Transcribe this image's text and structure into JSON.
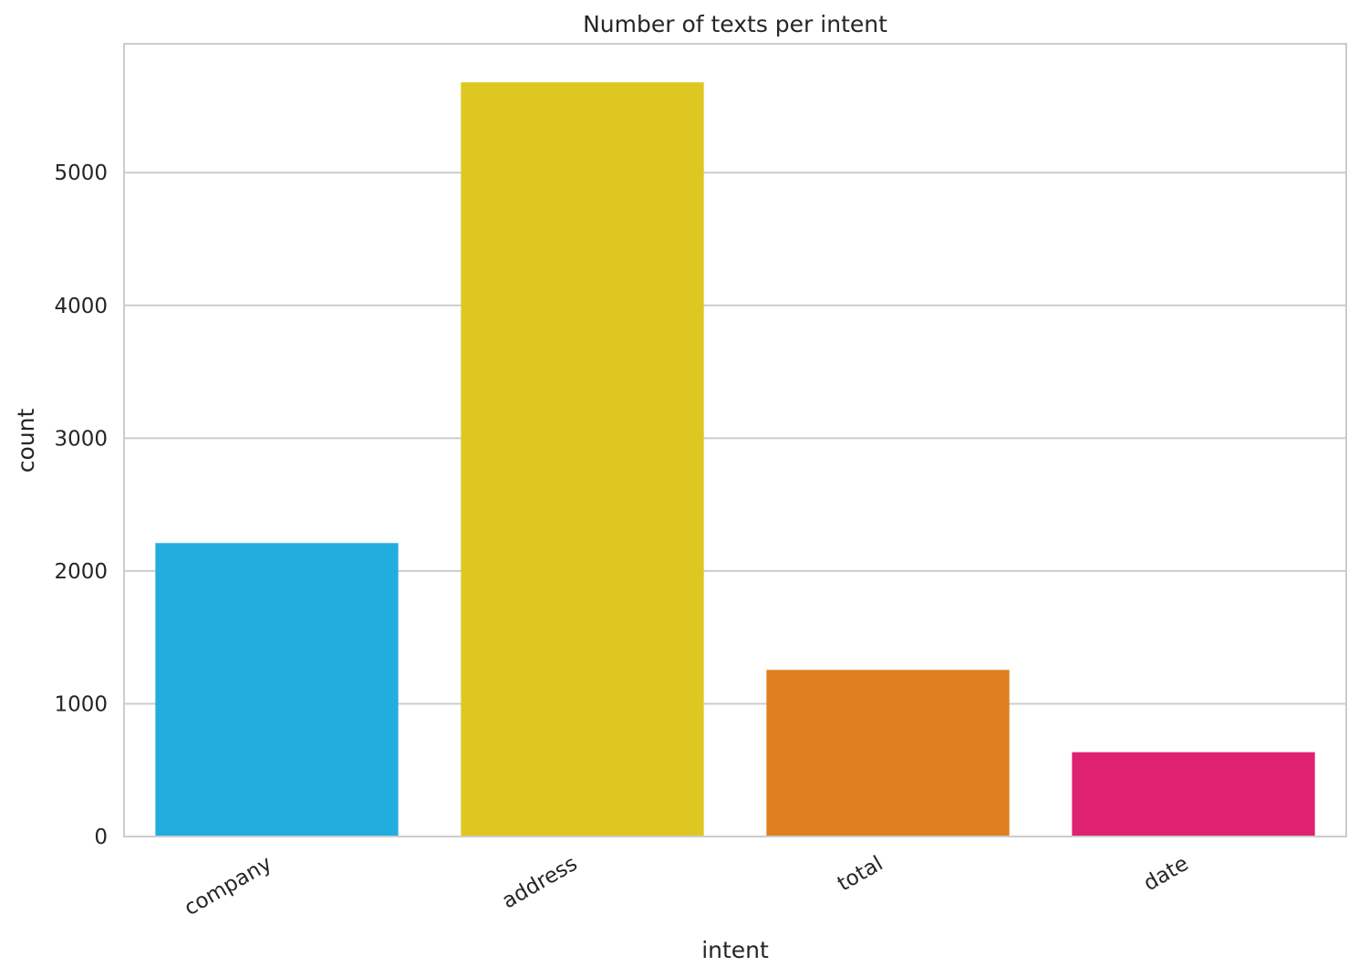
{
  "chart_data": {
    "type": "bar",
    "title": "Number of texts per intent",
    "xlabel": "intent",
    "ylabel": "count",
    "categories": [
      "company",
      "address",
      "total",
      "date"
    ],
    "values": [
      2210,
      5680,
      1255,
      635
    ],
    "colors": [
      "#22ADDF",
      "#DFC721",
      "#DF7F21",
      "#DF2172"
    ],
    "ylim": [
      0,
      5970
    ],
    "yticks": [
      0,
      1000,
      2000,
      3000,
      4000,
      5000
    ],
    "ytick_labels": [
      "0",
      "1000",
      "2000",
      "3000",
      "4000",
      "5000"
    ],
    "grid": true,
    "grid_color": "#CCCCCC",
    "legend": "none"
  }
}
